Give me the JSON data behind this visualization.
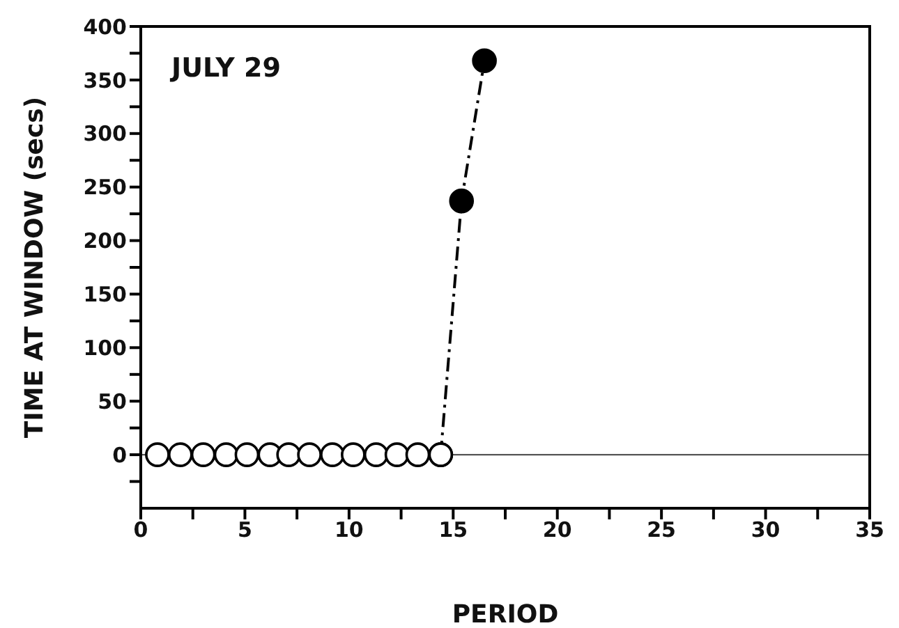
{
  "chart_data": {
    "type": "scatter",
    "xlabel": "PERIOD",
    "ylabel": "TIME AT WINDOW (secs)",
    "annotations": [
      "JULY 29"
    ],
    "xlim": [
      0,
      35
    ],
    "xticks": [
      0,
      {
        "value": 2.5,
        "label": null
      },
      5,
      {
        "value": 7.5,
        "label": null
      },
      10,
      {
        "value": 12.5,
        "label": null
      },
      15,
      {
        "value": 17.5,
        "label": null
      },
      20,
      {
        "value": 22.5,
        "label": null
      },
      25,
      {
        "value": 27.5,
        "label": null
      },
      30,
      {
        "value": 32.5,
        "label": null
      },
      35
    ],
    "ylim": [
      -50,
      400
    ],
    "yticks": [
      {
        "value": -25,
        "label": null
      },
      0,
      {
        "value": 25,
        "label": null
      },
      50,
      {
        "value": 75,
        "label": null
      },
      100,
      {
        "value": 125,
        "label": null
      },
      150,
      {
        "value": 175,
        "label": null
      },
      200,
      {
        "value": 225,
        "label": null
      },
      250,
      {
        "value": 275,
        "label": null
      },
      300,
      {
        "value": 325,
        "label": null
      },
      350,
      {
        "value": 375,
        "label": null
      },
      400
    ],
    "grid": false,
    "legend": false,
    "ref_lines": [
      {
        "axis": "y",
        "value": 0,
        "color": "#555555",
        "line_style": "solid"
      }
    ],
    "series": [
      {
        "type": "line",
        "color": "#000000",
        "marker": "circle",
        "line_style": "dashdot",
        "x": [
          14.4,
          15.4,
          16.5
        ],
        "values": [
          0,
          237,
          368
        ]
      },
      {
        "color": "#000000",
        "marker": "circle",
        "x": [
          0.8,
          1.9,
          3.0,
          4.1,
          5.1,
          6.2,
          7.1,
          8.1,
          9.2,
          10.2,
          11.3,
          12.3,
          13.3,
          14.4
        ],
        "values": [
          0,
          0,
          0,
          0,
          0,
          0,
          0,
          0,
          0,
          0,
          0,
          0,
          0,
          0
        ]
      }
    ]
  }
}
